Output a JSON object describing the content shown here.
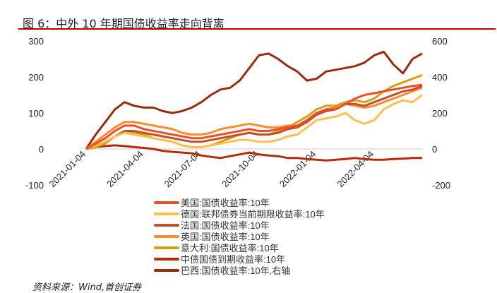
{
  "title": "图 6：中外 10 年期国债收益率走向背离",
  "source": "资料来源：Wind,首创证券",
  "chart_data": {
    "type": "line",
    "title": "中外 10 年期国债收益率走向背离",
    "x_unit": "months since 2021-01-04",
    "x": [
      0,
      0.5,
      1,
      1.5,
      2,
      2.5,
      3,
      3.5,
      4,
      4.5,
      5,
      5.5,
      6,
      6.5,
      7,
      7.5,
      8,
      8.5,
      9,
      9.5,
      10,
      10.5,
      11,
      11.5,
      12,
      12.5,
      13,
      13.5,
      14,
      14.5,
      15,
      15.5,
      16,
      16.5,
      17,
      17.5
    ],
    "x_ticks": [
      {
        "v": 0,
        "label": "2021-01-04"
      },
      {
        "v": 3,
        "label": "2021-04-04"
      },
      {
        "v": 6,
        "label": "2021-07-04"
      },
      {
        "v": 9,
        "label": "2021-10-04"
      },
      {
        "v": 12,
        "label": "2022-01-04"
      },
      {
        "v": 15,
        "label": "2022-04-04"
      }
    ],
    "ylim_left": [
      -100,
      300
    ],
    "yticks_left": [
      "-100",
      "0",
      "100",
      "200",
      "300"
    ],
    "ylim_right": [
      -200,
      600
    ],
    "yticks_right": [
      "-200",
      "0",
      "200",
      "400",
      "600"
    ],
    "legend_position": "bottom",
    "series": [
      {
        "name": "美国:国债收益率:10年",
        "color": "#e8502a",
        "axis": "left",
        "values": [
          0,
          15,
          30,
          50,
          65,
          65,
          55,
          50,
          45,
          40,
          35,
          30,
          30,
          35,
          40,
          45,
          50,
          55,
          50,
          50,
          55,
          60,
          65,
          80,
          100,
          110,
          110,
          125,
          140,
          150,
          155,
          160,
          165,
          170,
          175,
          178
        ]
      },
      {
        "name": "德国:联邦债券当前期限收益率:10年",
        "color": "#ffbf50",
        "axis": "left",
        "values": [
          0,
          10,
          20,
          35,
          45,
          40,
          35,
          30,
          25,
          20,
          10,
          5,
          5,
          10,
          15,
          20,
          25,
          25,
          20,
          20,
          25,
          35,
          40,
          60,
          80,
          85,
          90,
          100,
          80,
          70,
          80,
          110,
          125,
          135,
          130,
          150
        ]
      },
      {
        "name": "法国:国债收益率:10年",
        "color": "#c0502a",
        "axis": "left",
        "values": [
          0,
          10,
          20,
          35,
          50,
          50,
          45,
          40,
          35,
          30,
          25,
          20,
          20,
          25,
          30,
          35,
          40,
          45,
          40,
          40,
          45,
          55,
          60,
          75,
          95,
          105,
          110,
          125,
          125,
          120,
          130,
          140,
          150,
          160,
          165,
          175
        ]
      },
      {
        "name": "英国:国债收益率:10年",
        "color": "#ff8a2a",
        "axis": "left",
        "values": [
          0,
          20,
          40,
          60,
          75,
          75,
          70,
          65,
          60,
          55,
          45,
          40,
          40,
          45,
          55,
          60,
          65,
          70,
          65,
          60,
          60,
          65,
          65,
          75,
          95,
          110,
          115,
          125,
          120,
          115,
          120,
          130,
          140,
          150,
          160,
          170
        ]
      },
      {
        "name": "意大利:国债收益率:10年",
        "color": "#d4a010",
        "axis": "left",
        "values": [
          0,
          5,
          15,
          35,
          45,
          45,
          40,
          30,
          25,
          20,
          10,
          5,
          5,
          10,
          20,
          30,
          40,
          45,
          40,
          40,
          50,
          60,
          75,
          90,
          110,
          120,
          120,
          130,
          135,
          130,
          140,
          160,
          175,
          185,
          195,
          205
        ]
      },
      {
        "name": "中债国债到期收益率:10年",
        "color": "#b82a08",
        "axis": "left",
        "values": [
          0,
          5,
          8,
          10,
          8,
          5,
          3,
          0,
          -5,
          -8,
          -10,
          -12,
          -18,
          -22,
          -25,
          -20,
          -15,
          -10,
          -15,
          -18,
          -20,
          -25,
          -25,
          -28,
          -30,
          -32,
          -30,
          -28,
          -25,
          -28,
          -30,
          -30,
          -28,
          -27,
          -25,
          -25
        ]
      },
      {
        "name": "巴西:国债收益率:10年,右轴",
        "color": "#9a2a10",
        "axis": "right",
        "values": [
          0,
          80,
          150,
          220,
          260,
          240,
          230,
          230,
          210,
          200,
          210,
          230,
          260,
          300,
          330,
          340,
          380,
          450,
          520,
          530,
          500,
          460,
          430,
          380,
          390,
          430,
          440,
          450,
          460,
          480,
          520,
          540,
          470,
          420,
          500,
          530
        ]
      }
    ]
  }
}
